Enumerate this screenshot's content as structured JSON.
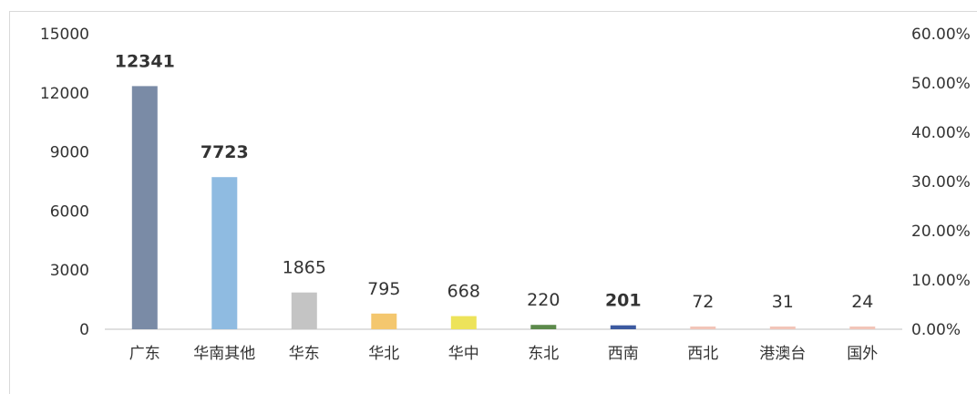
{
  "chart_data": {
    "type": "bar",
    "categories": [
      "广东",
      "华南其他",
      "华东",
      "华北",
      "华中",
      "东北",
      "西南",
      "西北",
      "港澳台",
      "国外"
    ],
    "values": [
      12341,
      7723,
      1865,
      795,
      668,
      220,
      201,
      72,
      31,
      24
    ],
    "data_labels": [
      "12341",
      "7723",
      "1865",
      "795",
      "668",
      "220",
      "201",
      "72",
      "31",
      "24"
    ],
    "bar_colors": [
      "#7a8ba6",
      "#8fbbe1",
      "#c4c4c4",
      "#f4c76e",
      "#ede35a",
      "#5c8a4b",
      "#3c5aa0",
      "#f2c5b8",
      "#f2c5b8",
      "#f2c5b8"
    ],
    "ylim": [
      0,
      15000
    ],
    "yticks": [
      0,
      3000,
      6000,
      9000,
      12000,
      15000
    ],
    "ytick_labels": [
      "0",
      "3000",
      "6000",
      "9000",
      "12000",
      "15000"
    ],
    "y2lim": [
      0,
      60
    ],
    "y2ticks": [
      0,
      10,
      20,
      30,
      40,
      50,
      60
    ],
    "y2tick_labels": [
      "0.00%",
      "10.00%",
      "20.00%",
      "30.00%",
      "40.00%",
      "50.00%",
      "60.00%"
    ],
    "grid": false,
    "legend": "none",
    "title": "",
    "xlabel": "",
    "ylabel": ""
  }
}
